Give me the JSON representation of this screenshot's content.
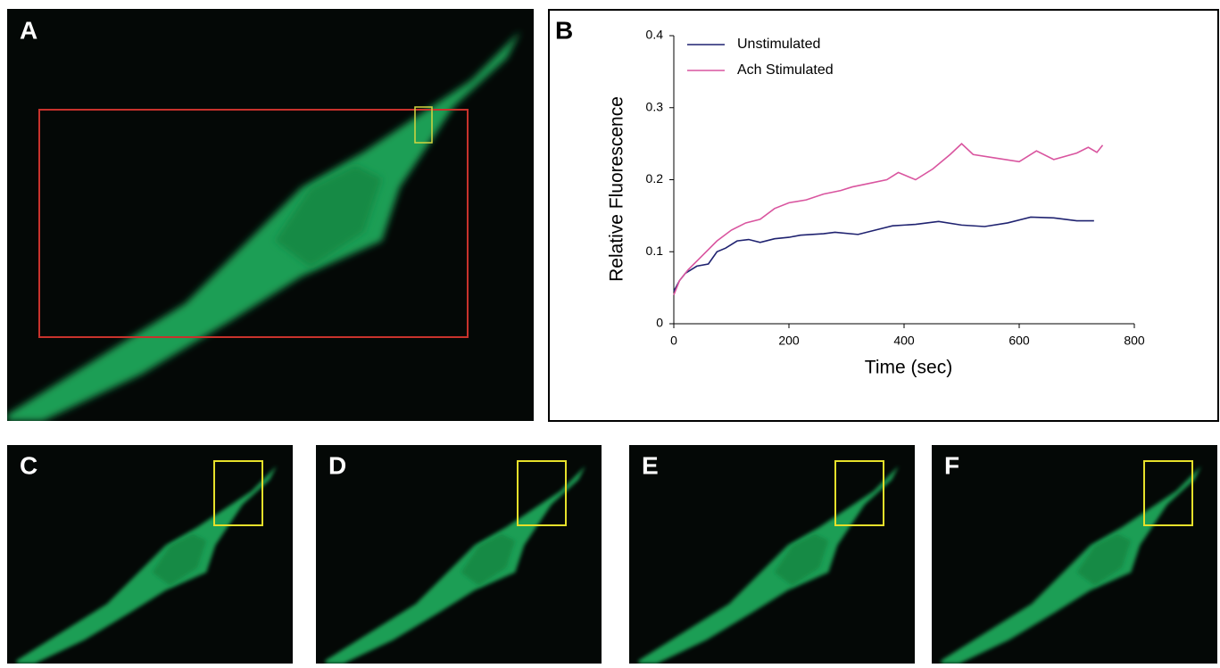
{
  "panels": [
    "A",
    "B",
    "C",
    "D",
    "E",
    "F"
  ],
  "chart_data": {
    "type": "line",
    "x_label": "Time (sec)",
    "y_label": "Relative Fluorescence",
    "xlim": [
      0,
      800
    ],
    "xticks": [
      0,
      200,
      400,
      600,
      800
    ],
    "ylim": [
      0,
      0.4
    ],
    "yticks": [
      0,
      0.1,
      0.2,
      0.3,
      0.4
    ],
    "series": [
      {
        "name": "Unstimulated",
        "color": "#1f2270",
        "x": [
          0,
          10,
          20,
          40,
          60,
          75,
          90,
          110,
          130,
          150,
          175,
          200,
          220,
          260,
          280,
          320,
          350,
          380,
          420,
          460,
          500,
          540,
          580,
          620,
          660,
          700,
          730
        ],
        "values": [
          0.045,
          0.06,
          0.07,
          0.08,
          0.083,
          0.1,
          0.105,
          0.115,
          0.117,
          0.113,
          0.118,
          0.12,
          0.123,
          0.125,
          0.127,
          0.124,
          0.13,
          0.136,
          0.138,
          0.142,
          0.137,
          0.135,
          0.14,
          0.148,
          0.147,
          0.143,
          0.143
        ]
      },
      {
        "name": "Ach Stimulated",
        "color": "#d9559f",
        "x": [
          0,
          10,
          25,
          50,
          75,
          100,
          125,
          150,
          175,
          200,
          230,
          260,
          290,
          310,
          340,
          370,
          390,
          420,
          450,
          480,
          500,
          520,
          560,
          600,
          630,
          660,
          700,
          720,
          735,
          745
        ],
        "values": [
          0.04,
          0.06,
          0.075,
          0.095,
          0.115,
          0.13,
          0.14,
          0.145,
          0.16,
          0.168,
          0.172,
          0.18,
          0.185,
          0.19,
          0.195,
          0.2,
          0.21,
          0.2,
          0.215,
          0.235,
          0.25,
          0.235,
          0.23,
          0.225,
          0.24,
          0.228,
          0.237,
          0.245,
          0.238,
          0.248
        ]
      }
    ]
  }
}
